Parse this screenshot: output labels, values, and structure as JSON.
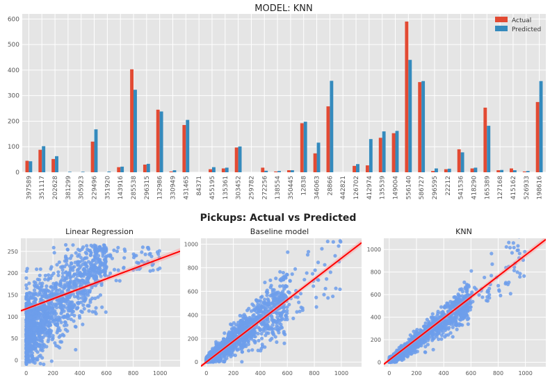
{
  "figure": {
    "suptitle": "Pickups: Actual vs Predicted"
  },
  "chart_data": [
    {
      "type": "bar",
      "title": "MODEL: KNN",
      "xlabel": "",
      "ylabel": "",
      "ylim": [
        0,
        620
      ],
      "yticks": [
        0,
        100,
        200,
        300,
        400,
        500,
        600
      ],
      "grid": true,
      "legend_position": "top-right",
      "categories": [
        "397589",
        "351117",
        "202628",
        "381299",
        "305923",
        "229496",
        "351920",
        "143916",
        "285538",
        "296315",
        "132986",
        "330949",
        "431465",
        "84371",
        "455195",
        "135361",
        "303452",
        "259782",
        "272256",
        "138554",
        "350445",
        "12838",
        "346063",
        "28866",
        "442821",
        "126702",
        "412974",
        "135539",
        "149004",
        "556140",
        "586727",
        "296595",
        "22212",
        "541536",
        "418290",
        "165389",
        "127168",
        "415162",
        "526933",
        "198616"
      ],
      "series": [
        {
          "name": "Actual",
          "color": "#e24a33",
          "values": [
            45,
            88,
            52,
            0,
            0,
            120,
            0,
            20,
            403,
            30,
            245,
            3,
            185,
            0,
            12,
            15,
            97,
            0,
            18,
            3,
            8,
            192,
            74,
            258,
            0,
            25,
            27,
            135,
            153,
            590,
            353,
            5,
            12,
            90,
            15,
            253,
            8,
            15,
            3,
            275
          ]
        },
        {
          "name": "Predicted",
          "color": "#348abd",
          "values": [
            43,
            102,
            63,
            2,
            2,
            168,
            3,
            22,
            323,
            33,
            238,
            8,
            205,
            0,
            20,
            18,
            101,
            0,
            6,
            5,
            8,
            198,
            116,
            358,
            0,
            32,
            130,
            160,
            162,
            440,
            357,
            15,
            14,
            78,
            18,
            182,
            9,
            8,
            5,
            357
          ]
        }
      ]
    },
    {
      "type": "scatter",
      "title": "Linear Regression",
      "xlim": [
        -40,
        1150
      ],
      "ylim": [
        -15,
        280
      ],
      "xticks": [
        0,
        200,
        400,
        600,
        800,
        1000
      ],
      "yticks": [
        0,
        50,
        100,
        150,
        200,
        250
      ],
      "grid": true,
      "point_color": "#6d9eeb",
      "line_color": "#ff0000",
      "fit": {
        "intercept": 118,
        "slope": 0.115
      }
    },
    {
      "type": "scatter",
      "title": "Baseline model",
      "xlim": [
        -40,
        1150
      ],
      "ylim": [
        -40,
        1050
      ],
      "xticks": [
        0,
        200,
        400,
        600,
        800,
        1000
      ],
      "yticks": [
        0,
        200,
        400,
        600,
        800,
        1000
      ],
      "grid": true,
      "point_color": "#6d9eeb",
      "line_color": "#ff0000",
      "fit": {
        "intercept": 0,
        "slope": 0.88
      }
    },
    {
      "type": "scatter",
      "title": "KNN",
      "xlim": [
        -40,
        1150
      ],
      "ylim": [
        -40,
        1100
      ],
      "xticks": [
        0,
        200,
        400,
        600,
        800,
        1000
      ],
      "yticks": [
        0,
        200,
        400,
        600,
        800,
        1000
      ],
      "grid": true,
      "point_color": "#6d9eeb",
      "line_color": "#ff0000",
      "fit": {
        "intercept": 20,
        "slope": 0.93
      }
    }
  ]
}
